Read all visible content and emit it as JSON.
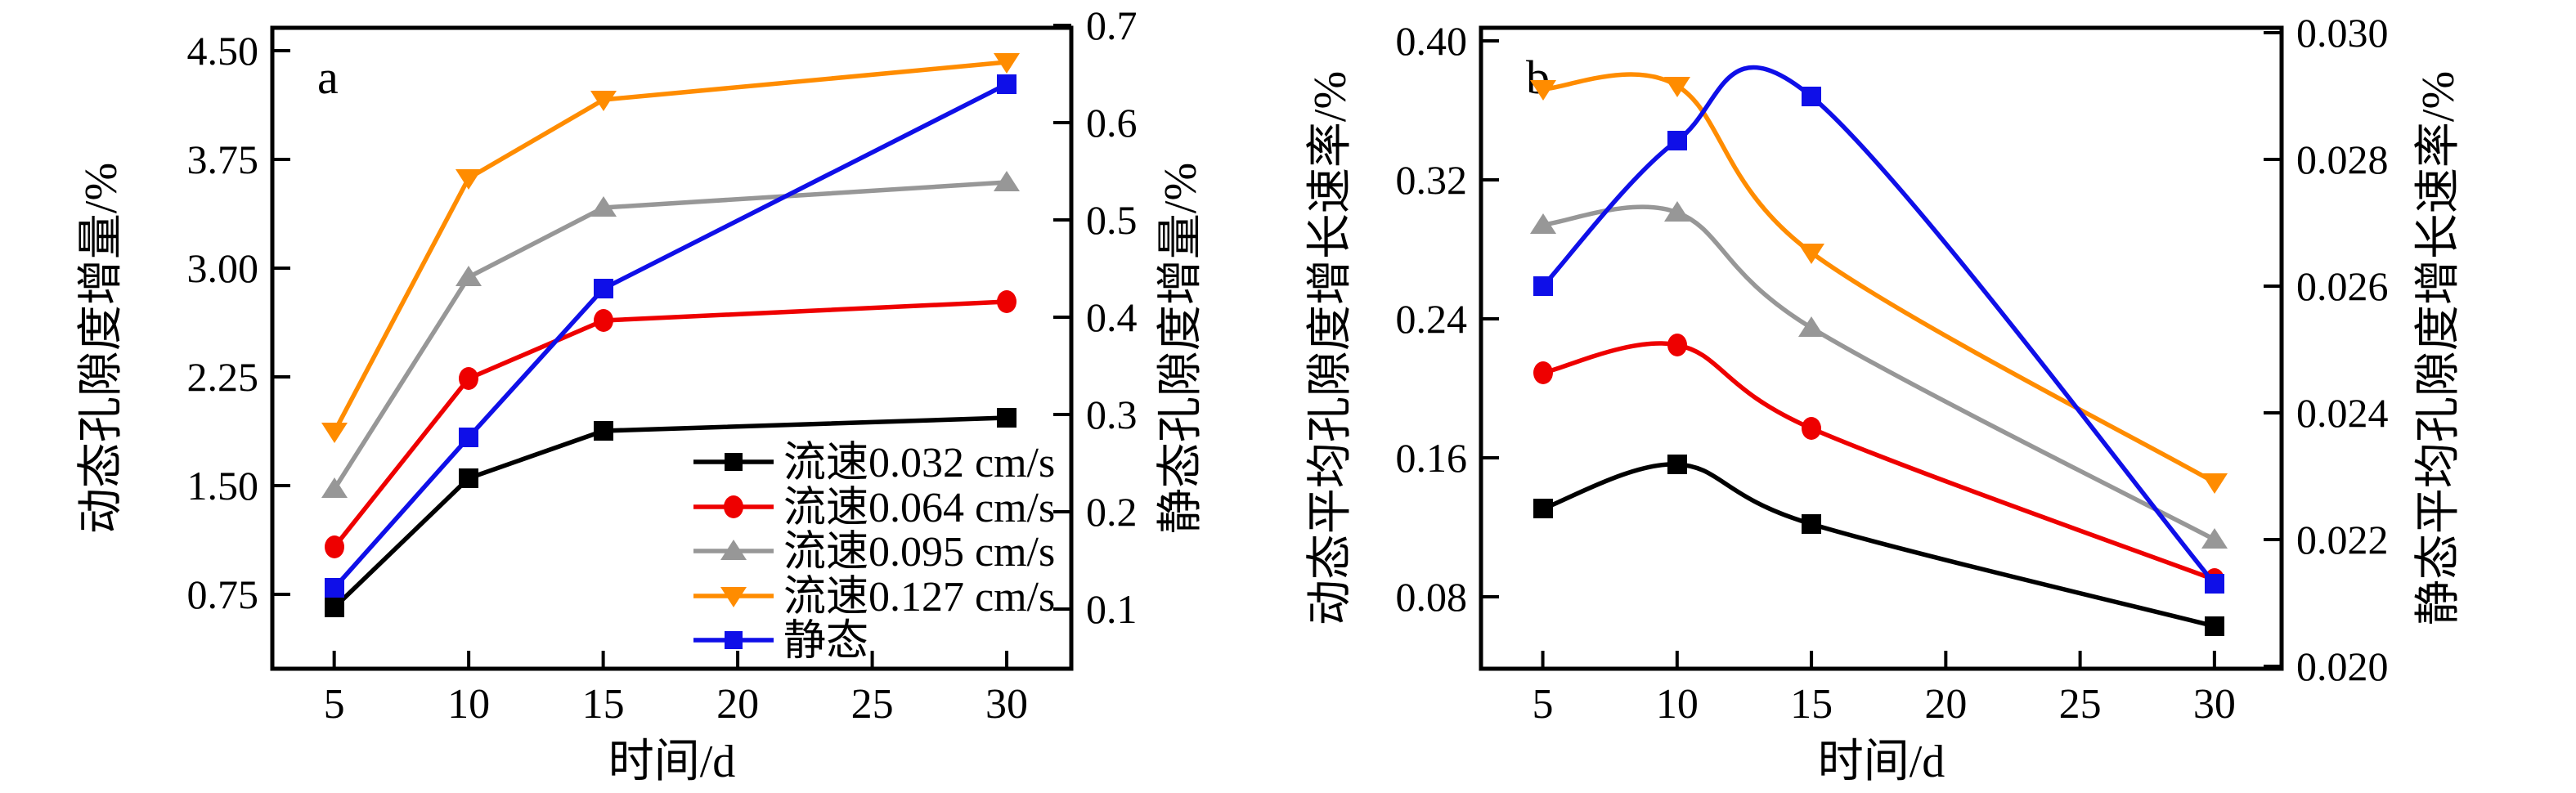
{
  "figure": {
    "background": "#ffffff",
    "frame_color": "#000000"
  },
  "chart_data": [
    {
      "type": "line",
      "panel_label": "a",
      "title": "",
      "xlabel": "时间/d",
      "ylabel_left": "动态孔隙度增量/%",
      "ylabel_right": "静态孔隙度增量/%",
      "x_ticks": [
        5,
        10,
        15,
        20,
        25,
        30
      ],
      "xlim": [
        2.7,
        32.4
      ],
      "yleft_ticks": [
        "0.75",
        "1.50",
        "2.25",
        "3.00",
        "3.75",
        "4.50"
      ],
      "yleft_lim": [
        0.237,
        4.658
      ],
      "yright_ticks": [
        "0.1",
        "0.2",
        "0.3",
        "0.4",
        "0.5",
        "0.6",
        "0.7"
      ],
      "yright_lim": [
        0.039,
        0.698
      ],
      "grid": false,
      "smooth": false,
      "legend_position": "inside-bottom-right",
      "x": [
        5,
        10,
        15,
        30
      ],
      "series": [
        {
          "name": "流速0.032 cm/s",
          "color": "#000000",
          "marker": "square",
          "axis": "left",
          "values": [
            0.66,
            1.55,
            1.88,
            1.97
          ]
        },
        {
          "name": "流速0.064 cm/s",
          "color": "#ee0000",
          "marker": "circle",
          "axis": "left",
          "values": [
            1.08,
            2.24,
            2.64,
            2.77
          ]
        },
        {
          "name": "流速0.095 cm/s",
          "color": "#979797",
          "marker": "triangle-up",
          "axis": "left",
          "values": [
            1.48,
            2.94,
            3.42,
            3.59
          ]
        },
        {
          "name": "流速0.127 cm/s",
          "color": "#ff8c00",
          "marker": "triangle-down",
          "axis": "left",
          "values": [
            1.87,
            3.62,
            4.16,
            4.42
          ]
        },
        {
          "name": "静态",
          "color": "#0f0fe8",
          "marker": "square",
          "axis": "right",
          "values": [
            0.122,
            0.277,
            0.43,
            0.64
          ]
        }
      ]
    },
    {
      "type": "line",
      "panel_label": "b",
      "title": "",
      "xlabel": "时间/d",
      "ylabel_left": "动态平均孔隙度增长速率/%",
      "ylabel_right": "静态平均孔隙度增长速率/%",
      "x_ticks": [
        5,
        10,
        15,
        20,
        25,
        30
      ],
      "xlim": [
        2.7,
        32.5
      ],
      "yleft_ticks": [
        "0.08",
        "0.16",
        "0.24",
        "0.32",
        "0.40"
      ],
      "yleft_lim": [
        0.0386,
        0.4075
      ],
      "yright_ticks": [
        "0.020",
        "0.022",
        "0.024",
        "0.026",
        "0.028",
        "0.030"
      ],
      "yright_lim": [
        0.01996,
        0.03008
      ],
      "grid": false,
      "smooth": true,
      "legend_position": "none",
      "x": [
        5,
        10,
        15,
        30
      ],
      "series": [
        {
          "name": "流速0.032 cm/s",
          "color": "#000000",
          "marker": "square",
          "axis": "left",
          "values": [
            0.131,
            0.156,
            0.122,
            0.063
          ]
        },
        {
          "name": "流速0.064 cm/s",
          "color": "#ee0000",
          "marker": "circle",
          "axis": "left",
          "values": [
            0.209,
            0.225,
            0.177,
            0.09
          ]
        },
        {
          "name": "流速0.095 cm/s",
          "color": "#979797",
          "marker": "triangle-up",
          "axis": "left",
          "values": [
            0.294,
            0.301,
            0.235,
            0.113
          ]
        },
        {
          "name": "流速0.127 cm/s",
          "color": "#ff8c00",
          "marker": "triangle-down",
          "axis": "left",
          "values": [
            0.372,
            0.374,
            0.278,
            0.146
          ]
        },
        {
          "name": "静态",
          "color": "#0f0fe8",
          "marker": "square",
          "axis": "right",
          "values": [
            0.026,
            0.0283,
            0.029,
            0.0213
          ]
        }
      ]
    }
  ]
}
